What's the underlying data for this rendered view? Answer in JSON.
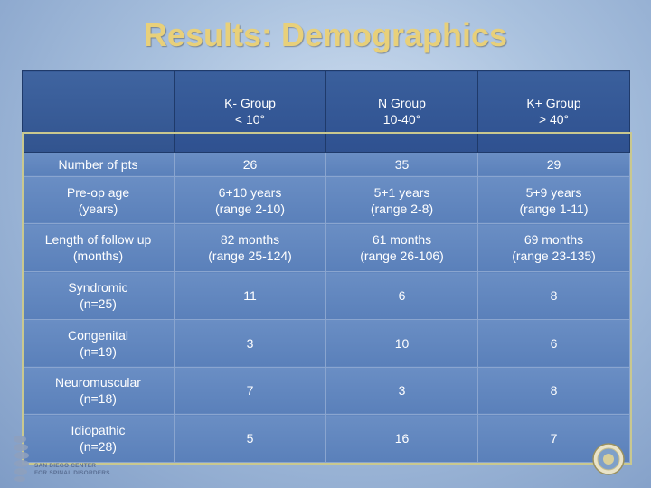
{
  "slide": {
    "title": "Results: Demographics"
  },
  "table": {
    "header": [
      {
        "name": "K- Group",
        "range": "< 10°"
      },
      {
        "name": "N Group",
        "range": "10-40°"
      },
      {
        "name": "K+ Group",
        "range": "> 40°"
      }
    ],
    "rows": [
      {
        "label": "Number of pts",
        "sublabel": "",
        "cells": [
          {
            "main": "26",
            "sub": ""
          },
          {
            "main": "35",
            "sub": ""
          },
          {
            "main": "29",
            "sub": ""
          }
        ]
      },
      {
        "label": "Pre-op age",
        "sublabel": "(years)",
        "cells": [
          {
            "main": "6+10 years",
            "sub": "(range 2-10)"
          },
          {
            "main": "5+1 years",
            "sub": "(range 2-8)"
          },
          {
            "main": "5+9 years",
            "sub": "(range 1-11)"
          }
        ]
      },
      {
        "label": "Length of follow up",
        "sublabel": "(months)",
        "cells": [
          {
            "main": "82 months",
            "sub": "(range 25-124)"
          },
          {
            "main": "61 months",
            "sub": "(range 26-106)"
          },
          {
            "main": "69 months",
            "sub": "(range 23-135)"
          }
        ]
      },
      {
        "label": "Syndromic",
        "sublabel": "(n=25)",
        "cells": [
          {
            "main": "11",
            "sub": ""
          },
          {
            "main": "6",
            "sub": ""
          },
          {
            "main": "8",
            "sub": ""
          }
        ]
      },
      {
        "label": "Congenital",
        "sublabel": "(n=19)",
        "cells": [
          {
            "main": "3",
            "sub": ""
          },
          {
            "main": "10",
            "sub": ""
          },
          {
            "main": "6",
            "sub": ""
          }
        ]
      },
      {
        "label": "Neuromuscular",
        "sublabel": "(n=18)",
        "cells": [
          {
            "main": "7",
            "sub": ""
          },
          {
            "main": "3",
            "sub": ""
          },
          {
            "main": "8",
            "sub": ""
          }
        ]
      },
      {
        "label": "Idiopathic",
        "sublabel": "(n=28)",
        "cells": [
          {
            "main": "5",
            "sub": ""
          },
          {
            "main": "16",
            "sub": ""
          },
          {
            "main": "7",
            "sub": ""
          }
        ]
      }
    ]
  },
  "footer": {
    "logo_line1": "SAN DIEGO CENTER",
    "logo_line2": "FOR SPINAL DISORDERS"
  },
  "colors": {
    "title": "#e8d07a",
    "header_bg": "#2f5190",
    "row_bg": "#5a80ba",
    "frame": "#c9c88f"
  }
}
